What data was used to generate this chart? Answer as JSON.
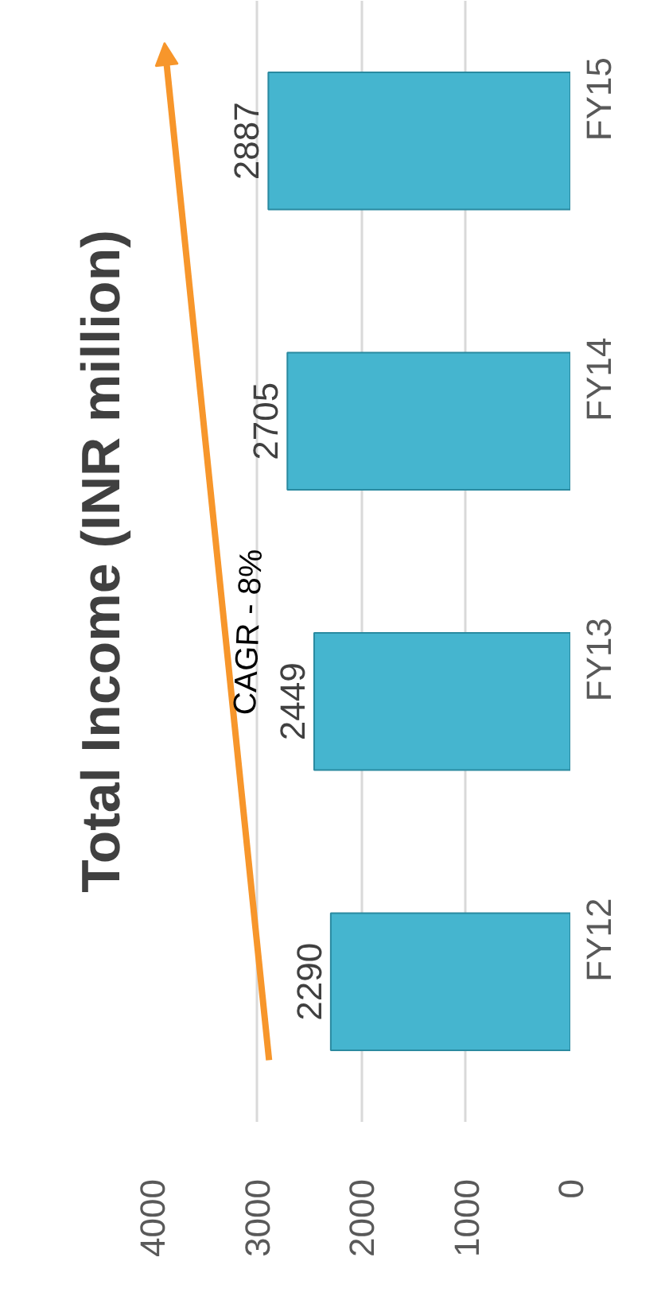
{
  "chart_data": {
    "type": "bar",
    "orientation": "horizontal",
    "title": "Total Income (INR million)",
    "categories": [
      "FY15",
      "FY14",
      "FY13",
      "FY12"
    ],
    "values": [
      2887,
      2705,
      2449,
      2290
    ],
    "color": "#45b5cf",
    "xlim": [
      4000,
      0
    ],
    "xticks": [
      0,
      1000,
      2000,
      3000,
      4000
    ],
    "grid": "x",
    "data_labels": true,
    "annotations": [
      "CAGR - 8%"
    ]
  }
}
